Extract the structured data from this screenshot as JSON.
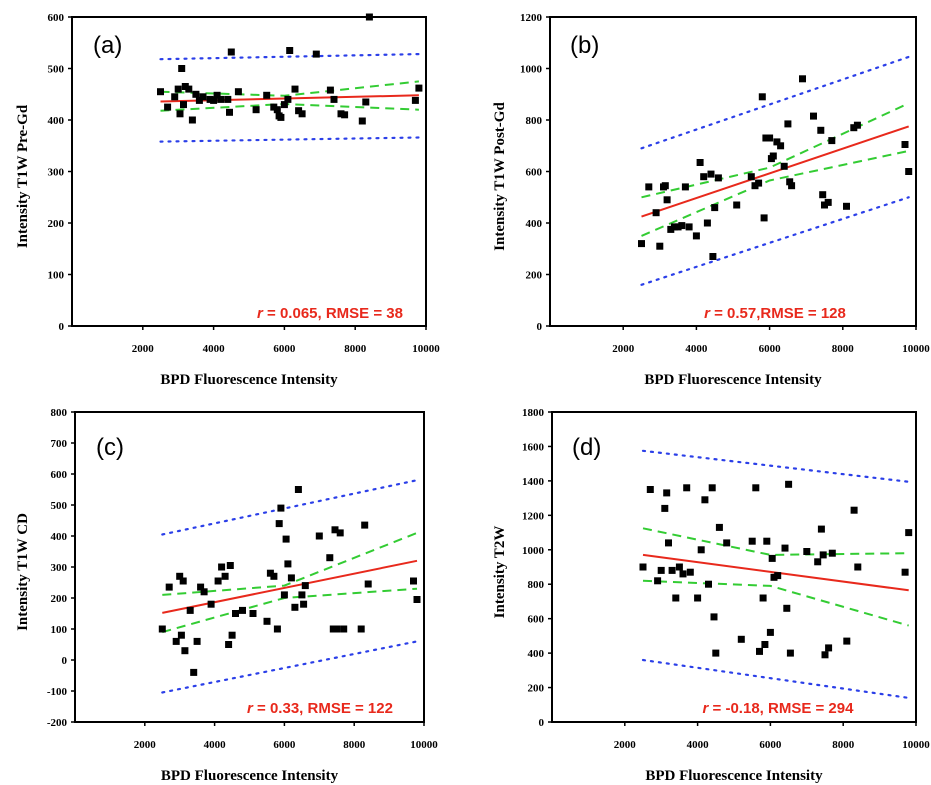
{
  "colors": {
    "fit": "#e8291c",
    "confidence": "#33cc33",
    "prediction": "#2b3fe8",
    "points": "#000000",
    "stats": "#e8291c"
  },
  "chart_data": [
    {
      "type": "scatter",
      "panel": "(a)",
      "xlabel": "BPD Fluorescence Intensity",
      "ylabel": "Intensity T1W Pre-Gd",
      "xlim": [
        0,
        10000
      ],
      "ylim": [
        0,
        600
      ],
      "xticks": [
        2000,
        4000,
        6000,
        8000,
        10000
      ],
      "yticks": [
        0,
        100,
        200,
        300,
        400,
        500,
        600
      ],
      "stat_r": "r",
      "stat_text": " = 0.065, RMSE = 38",
      "fit": [
        [
          2500,
          436
        ],
        [
          9800,
          448
        ]
      ],
      "ci_upper": [
        [
          2500,
          455
        ],
        [
          6000,
          447
        ],
        [
          9800,
          475
        ]
      ],
      "ci_lower": [
        [
          2500,
          418
        ],
        [
          6000,
          431
        ],
        [
          9800,
          420
        ]
      ],
      "pi_upper": [
        [
          2500,
          518
        ],
        [
          9800,
          528
        ]
      ],
      "pi_lower": [
        [
          2500,
          358
        ],
        [
          9800,
          366
        ]
      ],
      "points": [
        [
          2500,
          455
        ],
        [
          2700,
          425
        ],
        [
          2900,
          445
        ],
        [
          3000,
          460
        ],
        [
          3050,
          412
        ],
        [
          3100,
          500
        ],
        [
          3150,
          430
        ],
        [
          3200,
          465
        ],
        [
          3300,
          460
        ],
        [
          3400,
          400
        ],
        [
          3500,
          450
        ],
        [
          3600,
          438
        ],
        [
          3700,
          445
        ],
        [
          3900,
          440
        ],
        [
          4000,
          438
        ],
        [
          4100,
          448
        ],
        [
          4200,
          440
        ],
        [
          4400,
          440
        ],
        [
          4450,
          415
        ],
        [
          4500,
          532
        ],
        [
          4700,
          455
        ],
        [
          5200,
          420
        ],
        [
          5500,
          448
        ],
        [
          5700,
          425
        ],
        [
          5800,
          420
        ],
        [
          5850,
          408
        ],
        [
          5900,
          405
        ],
        [
          6000,
          430
        ],
        [
          6100,
          440
        ],
        [
          6150,
          535
        ],
        [
          6300,
          460
        ],
        [
          6400,
          418
        ],
        [
          6500,
          412
        ],
        [
          6900,
          528
        ],
        [
          7300,
          458
        ],
        [
          7400,
          440
        ],
        [
          7600,
          412
        ],
        [
          7700,
          410
        ],
        [
          8200,
          398
        ],
        [
          8300,
          435
        ],
        [
          8400,
          600
        ],
        [
          9700,
          438
        ],
        [
          9800,
          462
        ]
      ]
    },
    {
      "type": "scatter",
      "panel": "(b)",
      "xlabel": "BPD Fluorescence Intensity",
      "ylabel": "Intensity T1W Post-Gd",
      "xlim": [
        0,
        10000
      ],
      "ylim": [
        0,
        1200
      ],
      "xticks": [
        2000,
        4000,
        6000,
        8000,
        10000
      ],
      "yticks": [
        0,
        200,
        400,
        600,
        800,
        1000,
        1200
      ],
      "stat_r": "r",
      "stat_text": " = 0.57,RMSE = 128",
      "fit": [
        [
          2500,
          425
        ],
        [
          9800,
          775
        ]
      ],
      "ci_upper": [
        [
          2500,
          500
        ],
        [
          6000,
          615
        ],
        [
          9800,
          865
        ]
      ],
      "ci_lower": [
        [
          2500,
          350
        ],
        [
          6000,
          565
        ],
        [
          9800,
          680
        ]
      ],
      "pi_upper": [
        [
          2500,
          690
        ],
        [
          9800,
          1045
        ]
      ],
      "pi_lower": [
        [
          2500,
          160
        ],
        [
          9800,
          500
        ]
      ],
      "points": [
        [
          2500,
          320
        ],
        [
          2700,
          540
        ],
        [
          2900,
          440
        ],
        [
          3000,
          310
        ],
        [
          3100,
          540
        ],
        [
          3150,
          545
        ],
        [
          3200,
          490
        ],
        [
          3300,
          375
        ],
        [
          3400,
          385
        ],
        [
          3500,
          385
        ],
        [
          3600,
          390
        ],
        [
          3700,
          540
        ],
        [
          3800,
          385
        ],
        [
          4000,
          350
        ],
        [
          4100,
          635
        ],
        [
          4200,
          580
        ],
        [
          4300,
          400
        ],
        [
          4400,
          590
        ],
        [
          4450,
          270
        ],
        [
          4500,
          460
        ],
        [
          4600,
          575
        ],
        [
          5100,
          470
        ],
        [
          5500,
          580
        ],
        [
          5600,
          545
        ],
        [
          5700,
          555
        ],
        [
          5800,
          890
        ],
        [
          5850,
          420
        ],
        [
          5900,
          730
        ],
        [
          6000,
          730
        ],
        [
          6050,
          650
        ],
        [
          6100,
          660
        ],
        [
          6200,
          715
        ],
        [
          6300,
          700
        ],
        [
          6400,
          620
        ],
        [
          6500,
          785
        ],
        [
          6550,
          560
        ],
        [
          6600,
          545
        ],
        [
          6900,
          960
        ],
        [
          7200,
          815
        ],
        [
          7400,
          760
        ],
        [
          7450,
          510
        ],
        [
          7500,
          470
        ],
        [
          7600,
          480
        ],
        [
          7700,
          720
        ],
        [
          8100,
          465
        ],
        [
          8300,
          770
        ],
        [
          8400,
          780
        ],
        [
          9700,
          705
        ],
        [
          9800,
          600
        ]
      ]
    },
    {
      "type": "scatter",
      "panel": "(c)",
      "xlabel": "BPD Fluorescence Intensity",
      "ylabel": "Intensity T1W CD",
      "xlim": [
        0,
        10000
      ],
      "ylim": [
        -200,
        800
      ],
      "xticks": [
        2000,
        4000,
        6000,
        8000,
        10000
      ],
      "yticks": [
        -200,
        -100,
        0,
        100,
        200,
        300,
        400,
        500,
        600,
        700,
        800
      ],
      "stat_r": "r",
      "stat_text": " = 0.33, RMSE = 122",
      "fit": [
        [
          2500,
          152
        ],
        [
          9800,
          320
        ]
      ],
      "ci_upper": [
        [
          2500,
          210
        ],
        [
          6000,
          240
        ],
        [
          9800,
          410
        ]
      ],
      "ci_lower": [
        [
          2500,
          90
        ],
        [
          6000,
          200
        ],
        [
          9800,
          230
        ]
      ],
      "pi_upper": [
        [
          2500,
          405
        ],
        [
          9800,
          580
        ]
      ],
      "pi_lower": [
        [
          2500,
          -105
        ],
        [
          9800,
          60
        ]
      ],
      "points": [
        [
          2500,
          100
        ],
        [
          2700,
          235
        ],
        [
          2900,
          60
        ],
        [
          3000,
          270
        ],
        [
          3050,
          80
        ],
        [
          3100,
          255
        ],
        [
          3150,
          30
        ],
        [
          3300,
          160
        ],
        [
          3400,
          -40
        ],
        [
          3500,
          60
        ],
        [
          3600,
          235
        ],
        [
          3700,
          220
        ],
        [
          3900,
          180
        ],
        [
          4100,
          255
        ],
        [
          4200,
          300
        ],
        [
          4300,
          270
        ],
        [
          4400,
          50
        ],
        [
          4450,
          305
        ],
        [
          4500,
          80
        ],
        [
          4600,
          150
        ],
        [
          4800,
          160
        ],
        [
          5100,
          150
        ],
        [
          5500,
          125
        ],
        [
          5600,
          280
        ],
        [
          5700,
          270
        ],
        [
          5800,
          100
        ],
        [
          5850,
          440
        ],
        [
          5900,
          490
        ],
        [
          6000,
          210
        ],
        [
          6050,
          390
        ],
        [
          6100,
          310
        ],
        [
          6200,
          265
        ],
        [
          6300,
          170
        ],
        [
          6400,
          550
        ],
        [
          6500,
          210
        ],
        [
          6550,
          180
        ],
        [
          6600,
          240
        ],
        [
          7000,
          400
        ],
        [
          7300,
          330
        ],
        [
          7400,
          100
        ],
        [
          7450,
          420
        ],
        [
          7500,
          100
        ],
        [
          7600,
          410
        ],
        [
          7700,
          100
        ],
        [
          8200,
          100
        ],
        [
          8300,
          435
        ],
        [
          8400,
          245
        ],
        [
          9700,
          255
        ],
        [
          9800,
          195
        ]
      ]
    },
    {
      "type": "scatter",
      "panel": "(d)",
      "xlabel": "BPD Fluorescence Intensity",
      "ylabel": "Intensity T2W",
      "xlim": [
        0,
        10000
      ],
      "ylim": [
        0,
        1800
      ],
      "xticks": [
        2000,
        4000,
        6000,
        8000,
        10000
      ],
      "yticks": [
        0,
        200,
        400,
        600,
        800,
        1000,
        1200,
        1400,
        1600,
        1800
      ],
      "stat_r": "r",
      "stat_text": " = -0.18, RMSE = 294",
      "fit": [
        [
          2500,
          970
        ],
        [
          9800,
          765
        ]
      ],
      "ci_upper": [
        [
          2500,
          1125
        ],
        [
          6000,
          970
        ],
        [
          9800,
          980
        ]
      ],
      "ci_lower": [
        [
          2500,
          820
        ],
        [
          6000,
          790
        ],
        [
          9800,
          560
        ]
      ],
      "pi_upper": [
        [
          2500,
          1575
        ],
        [
          9800,
          1395
        ]
      ],
      "pi_lower": [
        [
          2500,
          360
        ],
        [
          9800,
          140
        ]
      ],
      "points": [
        [
          2500,
          900
        ],
        [
          2700,
          1350
        ],
        [
          2900,
          820
        ],
        [
          3000,
          880
        ],
        [
          3100,
          1240
        ],
        [
          3150,
          1330
        ],
        [
          3200,
          1040
        ],
        [
          3300,
          880
        ],
        [
          3400,
          720
        ],
        [
          3500,
          900
        ],
        [
          3600,
          860
        ],
        [
          3700,
          1360
        ],
        [
          3800,
          870
        ],
        [
          4000,
          720
        ],
        [
          4100,
          1000
        ],
        [
          4200,
          1290
        ],
        [
          4300,
          800
        ],
        [
          4400,
          1360
        ],
        [
          4450,
          610
        ],
        [
          4500,
          400
        ],
        [
          4600,
          1130
        ],
        [
          4800,
          1040
        ],
        [
          5200,
          480
        ],
        [
          5500,
          1050
        ],
        [
          5600,
          1360
        ],
        [
          5700,
          410
        ],
        [
          5800,
          720
        ],
        [
          5850,
          450
        ],
        [
          5900,
          1050
        ],
        [
          6000,
          520
        ],
        [
          6050,
          950
        ],
        [
          6100,
          840
        ],
        [
          6200,
          850
        ],
        [
          6400,
          1010
        ],
        [
          6450,
          660
        ],
        [
          6500,
          1380
        ],
        [
          6550,
          400
        ],
        [
          7000,
          990
        ],
        [
          7300,
          930
        ],
        [
          7400,
          1120
        ],
        [
          7450,
          970
        ],
        [
          7500,
          390
        ],
        [
          7600,
          430
        ],
        [
          7700,
          980
        ],
        [
          8100,
          470
        ],
        [
          8300,
          1230
        ],
        [
          8400,
          900
        ],
        [
          9700,
          870
        ],
        [
          9800,
          1100
        ]
      ]
    }
  ]
}
